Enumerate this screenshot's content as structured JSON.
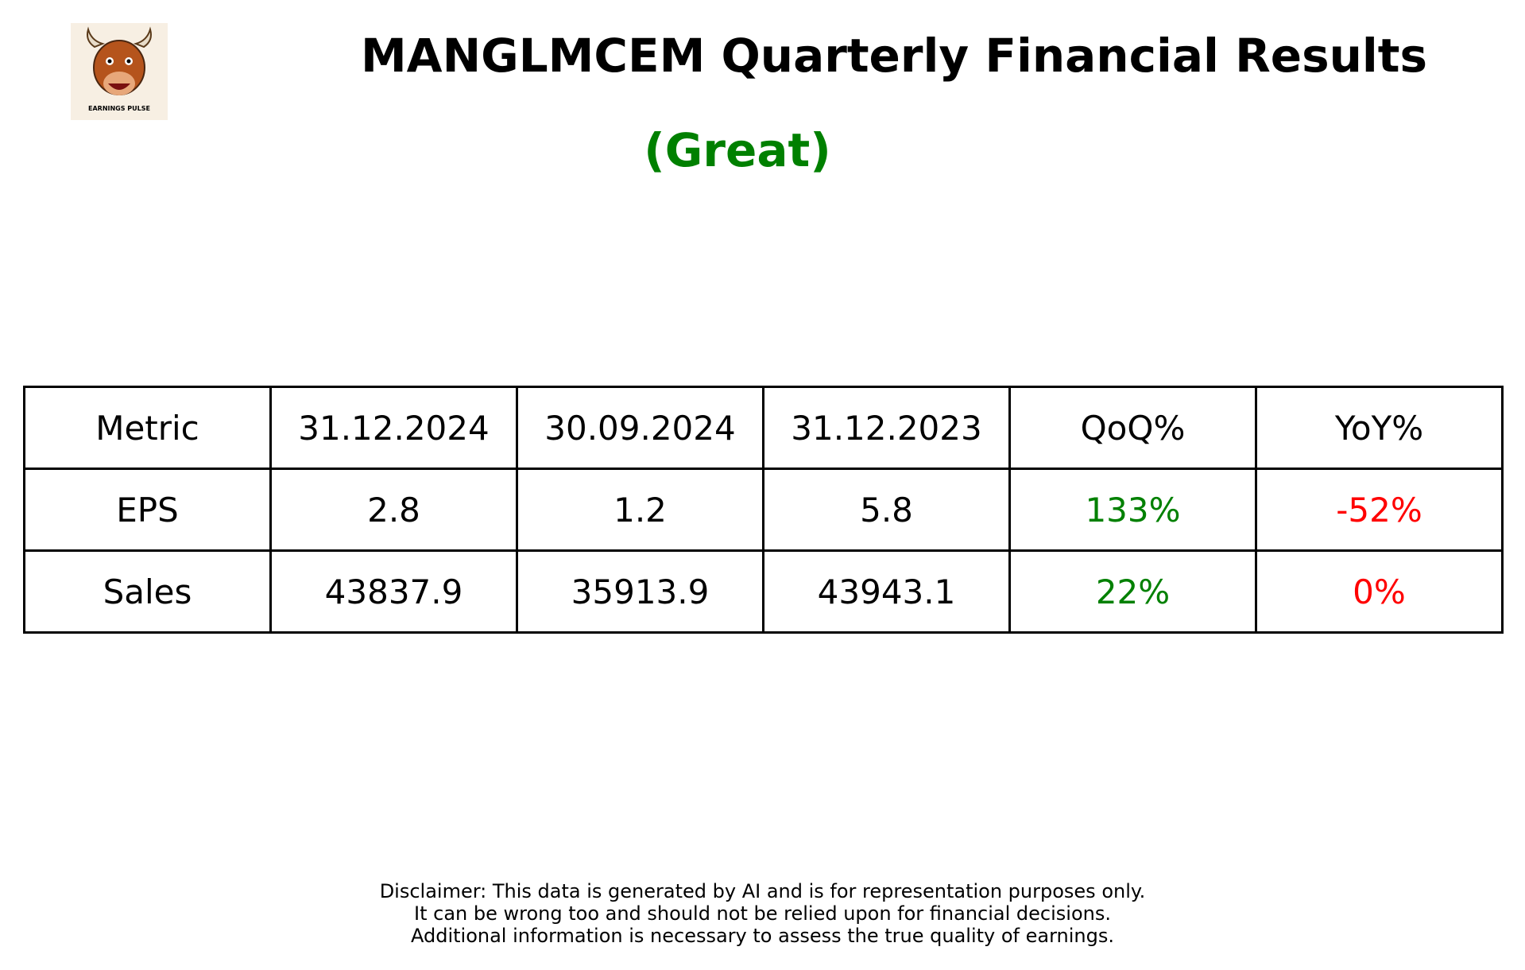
{
  "header": {
    "title": "MANGLMCEM Quarterly Financial Results",
    "rating": "(Great)",
    "logo_text": "EARNINGS PULSE"
  },
  "table": {
    "columns": [
      "Metric",
      "31.12.2024",
      "30.09.2024",
      "31.12.2023",
      "QoQ%",
      "YoY%"
    ],
    "rows": [
      [
        "EPS",
        "2.8",
        "1.2",
        "5.8",
        "133%",
        "-52%"
      ],
      [
        "Sales",
        "43837.9",
        "35913.9",
        "43943.1",
        "22%",
        "0%"
      ]
    ]
  },
  "disclaimer": [
    "Disclaimer: This data is generated by AI and is for representation purposes only.",
    "It can be wrong too and should not be relied upon for financial decisions.",
    "Additional information is necessary to assess the true quality of earnings."
  ]
}
